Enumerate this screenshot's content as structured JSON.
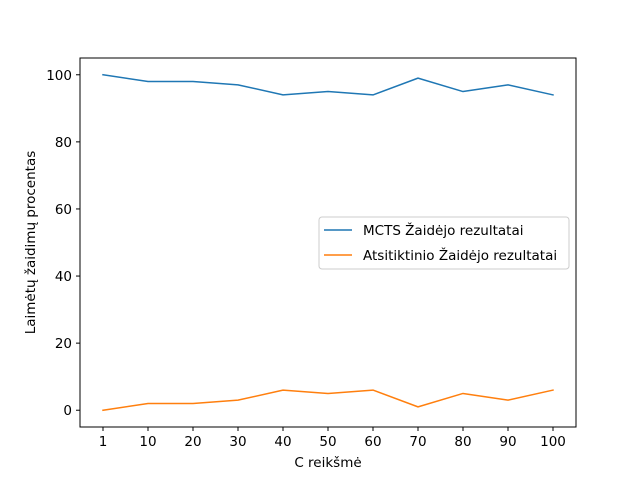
{
  "chart_data": {
    "type": "line",
    "title": "",
    "xlabel": "C reikšmė",
    "ylabel": "Laimėtų žaidimų procentas",
    "categories": [
      "1",
      "10",
      "20",
      "30",
      "40",
      "50",
      "60",
      "70",
      "80",
      "90",
      "100"
    ],
    "ylim": [
      -5,
      105
    ],
    "yticks": [
      0,
      20,
      40,
      60,
      80,
      100
    ],
    "grid": false,
    "legend_position": "center-right",
    "series": [
      {
        "name": "MCTS Žaidėjo rezultatai",
        "color": "#1f77b4",
        "values": [
          100,
          98,
          98,
          97,
          94,
          95,
          94,
          99,
          95,
          97,
          94
        ]
      },
      {
        "name": "Atsitiktinio Žaidėjo rezultatai",
        "color": "#ff7f0e",
        "values": [
          0,
          2,
          2,
          3,
          6,
          5,
          6,
          1,
          5,
          3,
          6
        ]
      }
    ]
  }
}
